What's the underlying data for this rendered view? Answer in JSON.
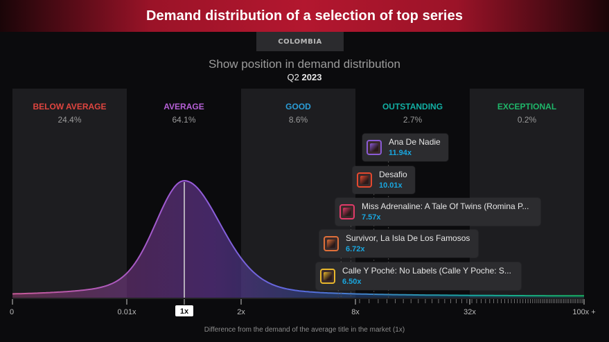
{
  "header": {
    "title": "Demand distribution of a selection of top series",
    "country": "COLOMBIA",
    "subtitle": "Show position in demand distribution",
    "period_prefix": "Q2",
    "period_year": "2023"
  },
  "chart_data": {
    "type": "area",
    "title": "Show position in demand distribution",
    "xlabel": "Difference from the demand of the average title in the market (1x)",
    "x_ticks": [
      "0",
      "0.01x",
      "1x",
      "2x",
      "8x",
      "32x",
      "100x +"
    ],
    "highlighted_tick": "1x",
    "bands": [
      {
        "name": "BELOW AVERAGE",
        "share": "24.4%",
        "color": "#e0453f"
      },
      {
        "name": "AVERAGE",
        "share": "64.1%",
        "color": "#b660d6"
      },
      {
        "name": "GOOD",
        "share": "8.6%",
        "color": "#2b9ed8"
      },
      {
        "name": "OUTSTANDING",
        "share": "2.7%",
        "color": "#12b0a4"
      },
      {
        "name": "EXCEPTIONAL",
        "share": "0.2%",
        "color": "#1fb76a"
      }
    ],
    "peak_at": "1x",
    "shows": [
      {
        "name": "Ana De Nadie",
        "value": 11.94,
        "label": "11.94x",
        "border": "#8b5bd6"
      },
      {
        "name": "Desafio",
        "value": 10.01,
        "label": "10.01x",
        "border": "#e5492f"
      },
      {
        "name": "Miss Adrenaline: A Tale Of Twins (Romina P...",
        "value": 7.57,
        "label": "7.57x",
        "border": "#e23b6a"
      },
      {
        "name": "Survivor, La Isla De Los Famosos",
        "value": 6.72,
        "label": "6.72x",
        "border": "#e0703a"
      },
      {
        "name": "Calle Y Poché: No Labels (Calle Y Poche: S...",
        "value": 6.5,
        "label": "6.50x",
        "border": "#e8b72c"
      }
    ],
    "grid": false,
    "legend": "none"
  },
  "colors": {
    "banner": "#b3172f",
    "value_text": "#19a7e0",
    "curve_start": "#c85a98",
    "curve_mid": "#8c5ae0",
    "curve_end": "#18a8a0"
  }
}
